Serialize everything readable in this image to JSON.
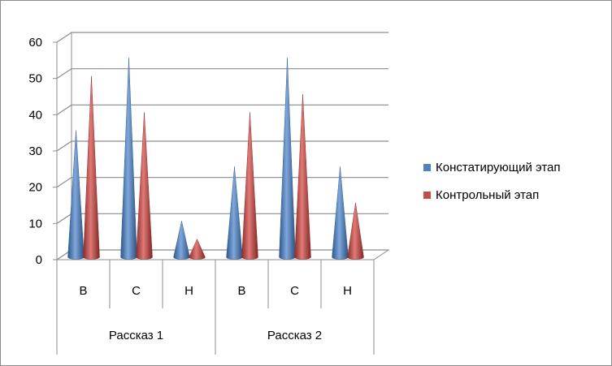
{
  "chart_data": {
    "type": "bar",
    "style": "3d-cone",
    "categories": [
      "В",
      "С",
      "Н",
      "В",
      "С",
      "Н"
    ],
    "groups": [
      {
        "label": "Рассказ 1",
        "categories": [
          "В",
          "С",
          "Н"
        ]
      },
      {
        "label": "Рассказ 2",
        "categories": [
          "В",
          "С",
          "Н"
        ]
      }
    ],
    "series": [
      {
        "name": "Констатирующий этап",
        "color": "#4f81bd",
        "values": [
          35,
          55,
          10,
          25,
          55,
          25
        ]
      },
      {
        "name": "Контрольный этап",
        "color": "#c0504d",
        "values": [
          50,
          40,
          5,
          40,
          45,
          15
        ]
      }
    ],
    "ylim": [
      0,
      60
    ],
    "yticks": [
      0,
      10,
      20,
      30,
      40,
      50,
      60
    ],
    "grid": true,
    "legend_position": "right"
  }
}
